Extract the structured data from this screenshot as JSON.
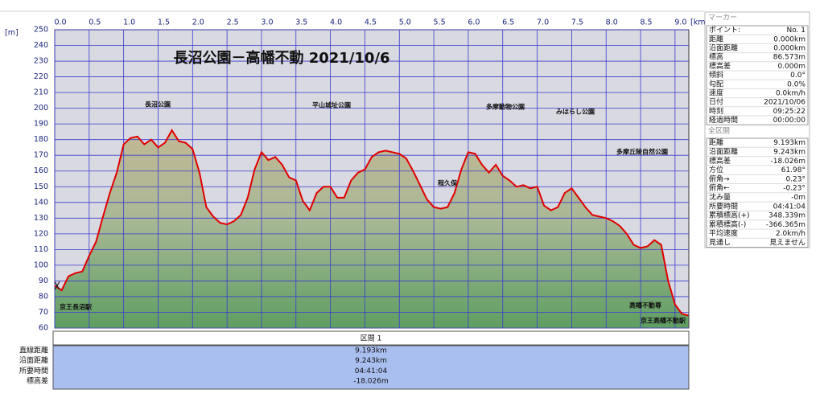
{
  "chart_data": {
    "type": "area",
    "title": "長沼公園－高幡不動 2021/10/6",
    "x_unit": "[km]",
    "y_unit": "[m]",
    "x": [
      0.0,
      0.1,
      0.2,
      0.3,
      0.4,
      0.5,
      0.6,
      0.7,
      0.8,
      0.9,
      1.0,
      1.1,
      1.2,
      1.3,
      1.4,
      1.5,
      1.6,
      1.7,
      1.8,
      1.9,
      2.0,
      2.1,
      2.2,
      2.3,
      2.4,
      2.5,
      2.6,
      2.7,
      2.8,
      2.9,
      3.0,
      3.1,
      3.2,
      3.3,
      3.4,
      3.5,
      3.6,
      3.7,
      3.8,
      3.9,
      4.0,
      4.1,
      4.2,
      4.3,
      4.4,
      4.5,
      4.6,
      4.7,
      4.8,
      4.9,
      5.0,
      5.1,
      5.2,
      5.3,
      5.4,
      5.5,
      5.6,
      5.7,
      5.8,
      5.9,
      6.0,
      6.1,
      6.2,
      6.3,
      6.4,
      6.5,
      6.6,
      6.7,
      6.8,
      6.9,
      7.0,
      7.1,
      7.2,
      7.3,
      7.4,
      7.5,
      7.6,
      7.7,
      7.8,
      7.9,
      8.0,
      8.1,
      8.2,
      8.3,
      8.4,
      8.5,
      8.6,
      8.7,
      8.8,
      8.9,
      9.0,
      9.1,
      9.193
    ],
    "values": [
      87,
      84,
      93,
      95,
      96,
      106,
      115,
      131,
      146,
      159,
      177,
      181,
      182,
      177,
      180,
      175,
      178,
      186,
      179,
      178,
      174,
      159,
      137,
      131,
      127,
      126,
      128,
      132,
      143,
      161,
      172,
      167,
      169,
      164,
      156,
      154,
      141,
      135,
      146,
      150,
      150,
      143,
      143,
      154,
      159,
      161,
      169,
      172,
      173,
      172,
      171,
      168,
      160,
      151,
      142,
      137,
      136,
      137,
      146,
      161,
      172,
      171,
      164,
      159,
      164,
      157,
      154,
      150,
      151,
      149,
      150,
      138,
      135,
      137,
      146,
      149,
      143,
      137,
      132,
      131,
      130,
      128,
      125,
      120,
      113,
      111,
      112,
      116,
      113,
      90,
      75,
      69,
      68
    ],
    "color": "#e00000",
    "xlim": [
      0,
      9.2
    ],
    "ylim": [
      60,
      250
    ],
    "xticks": [
      {
        "value": 0,
        "label": "0.0"
      },
      0.5,
      {
        "value": 1,
        "label": "1.0"
      },
      1.5,
      {
        "value": 2,
        "label": "2.0"
      },
      2.5,
      {
        "value": 3,
        "label": "3.0"
      },
      3.5,
      {
        "value": 4,
        "label": "4.0"
      },
      4.5,
      {
        "value": 5,
        "label": "5.0"
      },
      5.5,
      {
        "value": 6,
        "label": "6.0"
      },
      6.5,
      {
        "value": 7,
        "label": "7.0"
      },
      7.5,
      {
        "value": 8,
        "label": "8.0"
      },
      8.5,
      {
        "value": 9,
        "label": "9.0"
      }
    ],
    "yticks": [
      60,
      70,
      80,
      90,
      100,
      110,
      120,
      130,
      140,
      150,
      160,
      170,
      180,
      190,
      200,
      210,
      220,
      230,
      240,
      250
    ],
    "grid": true,
    "annotations": [
      "長沼公園",
      "平山城址公園",
      "多摩動物公園",
      "みはらし公園",
      "多摩丘陵自然公園",
      "程久保",
      "京王長沼駅",
      "高幡不動尊",
      "京王高幡不動駅"
    ]
  },
  "section_panel": {
    "title": "区間 1",
    "labels": [
      "直線距離",
      "沿面距離",
      "所要時間",
      "標高差"
    ],
    "values": [
      "9.193km",
      "9.243km",
      "04:41:04",
      "-18.026m"
    ]
  },
  "marker_panel": {
    "title": "マーカー",
    "rows": [
      [
        "ポイント:",
        "No. 1"
      ],
      [
        "距離",
        "0.000km"
      ],
      [
        "沿面距離",
        "0.000km"
      ],
      [
        "標高",
        "86.573m"
      ],
      [
        "標高差",
        "0.000m"
      ],
      [
        "傾斜",
        "0.0°"
      ],
      [
        "勾配",
        "0.0%"
      ],
      [
        "速度",
        "0.0km/h"
      ],
      [
        "日付",
        "2021/10/06"
      ],
      [
        "時刻",
        "09:25:22"
      ],
      [
        "経過時間",
        "00:00:00"
      ]
    ]
  },
  "total_panel": {
    "title": "全区間",
    "rows": [
      [
        "距離",
        "9.193km"
      ],
      [
        "沿面距離",
        "9.243km"
      ],
      [
        "標高差",
        "-18.026m"
      ],
      [
        "方位",
        "61.98°"
      ],
      [
        "俯角→",
        "0.23°"
      ],
      [
        "俯角←",
        "-0.23°"
      ],
      [
        "沈み量",
        "-0m"
      ],
      [
        "所要時間",
        "04:41:04"
      ],
      [
        "累積標高(+)",
        "348.339m"
      ],
      [
        "累積標高(-)",
        "-366.365m"
      ],
      [
        "平均速度",
        "2.0km/h"
      ],
      [
        "見通し",
        "見えません"
      ]
    ]
  }
}
